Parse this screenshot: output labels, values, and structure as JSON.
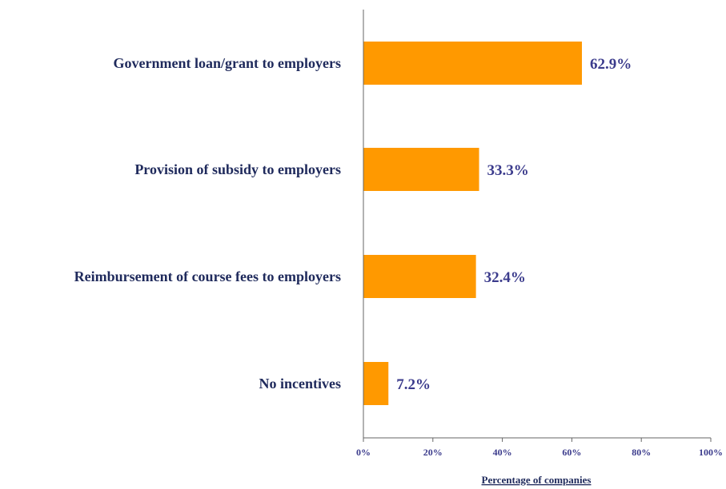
{
  "chart_data": {
    "type": "bar",
    "orientation": "horizontal",
    "categories": [
      "Government loan/grant to employers",
      "Provision of subsidy to employers",
      "Reimbursement of course fees to employers",
      "No incentives"
    ],
    "values": [
      62.9,
      33.3,
      32.4,
      7.2
    ],
    "value_labels": [
      "62.9%",
      "33.3%",
      "32.4%",
      "7.2%"
    ],
    "xlabel": "Percentage of companies",
    "xlim": [
      0,
      100
    ],
    "xticks": [
      "0%",
      "20%",
      "40%",
      "60%",
      "80%",
      "100%"
    ],
    "grid": false,
    "colors": {
      "bar": "#FF9900",
      "category_text": "#1f2a5c",
      "value_text": "#3b3b8c",
      "axis": "#666666"
    }
  }
}
